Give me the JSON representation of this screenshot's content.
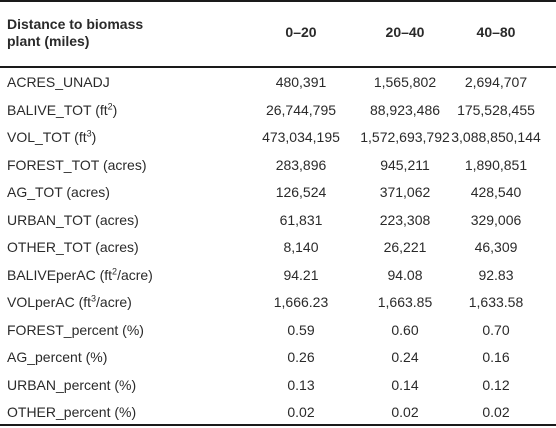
{
  "table": {
    "headers": {
      "col0_line1": "Distance to biomass",
      "col0_line2": "plant (miles)",
      "col1": "0–20",
      "col2": "20–40",
      "col3": "40–80"
    },
    "rows": [
      {
        "label": "ACRES_UNADJ",
        "sup": "",
        "suffix": "",
        "v1": "480,391",
        "v2": "1,565,802",
        "v3": "2,694,707"
      },
      {
        "label": "BALIVE_TOT (ft",
        "sup": "2",
        "suffix": ")",
        "v1": "26,744,795",
        "v2": "88,923,486",
        "v3": "175,528,455"
      },
      {
        "label": "VOL_TOT (ft",
        "sup": "3",
        "suffix": ")",
        "v1": "473,034,195",
        "v2": "1,572,693,792",
        "v3": "3,088,850,144"
      },
      {
        "label": "FOREST_TOT (acres)",
        "sup": "",
        "suffix": "",
        "v1": "283,896",
        "v2": "945,211",
        "v3": "1,890,851"
      },
      {
        "label": "AG_TOT (acres)",
        "sup": "",
        "suffix": "",
        "v1": "126,524",
        "v2": "371,062",
        "v3": "428,540"
      },
      {
        "label": "URBAN_TOT (acres)",
        "sup": "",
        "suffix": "",
        "v1": "61,831",
        "v2": "223,308",
        "v3": "329,006"
      },
      {
        "label": "OTHER_TOT (acres)",
        "sup": "",
        "suffix": "",
        "v1": "8,140",
        "v2": "26,221",
        "v3": "46,309"
      },
      {
        "label": "BALIVEperAC (ft",
        "sup": "2",
        "suffix": "/acre)",
        "v1": "94.21",
        "v2": "94.08",
        "v3": "92.83"
      },
      {
        "label": "VOLperAC (ft",
        "sup": "3",
        "suffix": "/acre)",
        "v1": "1,666.23",
        "v2": "1,663.85",
        "v3": "1,633.58"
      },
      {
        "label": "FOREST_percent (%)",
        "sup": "",
        "suffix": "",
        "v1": "0.59",
        "v2": "0.60",
        "v3": "0.70"
      },
      {
        "label": "AG_percent (%)",
        "sup": "",
        "suffix": "",
        "v1": "0.26",
        "v2": "0.24",
        "v3": "0.16"
      },
      {
        "label": "URBAN_percent (%)",
        "sup": "",
        "suffix": "",
        "v1": "0.13",
        "v2": "0.14",
        "v3": "0.12"
      },
      {
        "label": "OTHER_percent (%)",
        "sup": "",
        "suffix": "",
        "v1": "0.02",
        "v2": "0.02",
        "v3": "0.02"
      }
    ]
  }
}
